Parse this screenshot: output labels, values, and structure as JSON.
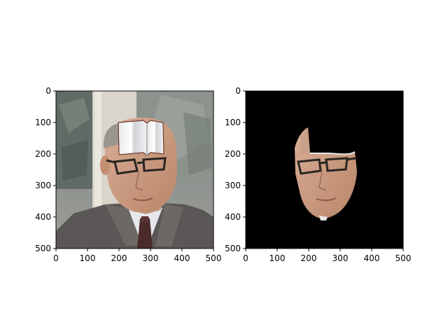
{
  "chart_data": [
    {
      "type": "image",
      "content": "photo of an elderly man with glasses, gray suit and dark tie; a white open-book picture is pasted over his forehead",
      "xlim": [
        0,
        500
      ],
      "ylim": [
        500,
        0
      ],
      "xticks": [
        0,
        100,
        200,
        300,
        400,
        500
      ],
      "yticks": [
        0,
        100,
        200,
        300,
        400,
        500
      ],
      "xtick_labels": [
        "0",
        "100",
        "200",
        "300",
        "400",
        "500"
      ],
      "ytick_labels": [
        "0",
        "100",
        "200",
        "300",
        "400",
        "500"
      ],
      "title": "",
      "xlabel": "",
      "ylabel": "",
      "grid": false
    },
    {
      "type": "image",
      "content": "segmentation mask result: only the face region of the same photo is kept on a black background; the pasted book area is cut out",
      "background_color": "#000000",
      "xlim": [
        0,
        500
      ],
      "ylim": [
        500,
        0
      ],
      "xticks": [
        0,
        100,
        200,
        300,
        400,
        500
      ],
      "yticks": [
        0,
        100,
        200,
        300,
        400,
        500
      ],
      "xtick_labels": [
        "0",
        "100",
        "200",
        "300",
        "400",
        "500"
      ],
      "ytick_labels": [
        "0",
        "100",
        "200",
        "300",
        "400",
        "500"
      ],
      "title": "",
      "xlabel": "",
      "ylabel": "",
      "grid": false
    }
  ]
}
